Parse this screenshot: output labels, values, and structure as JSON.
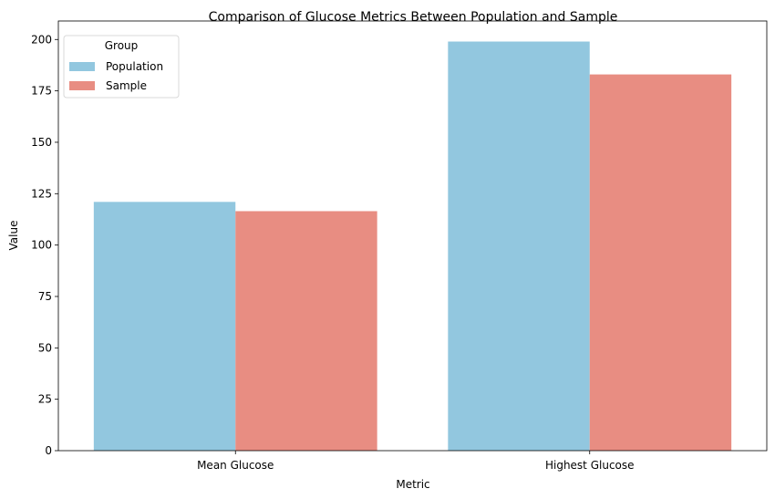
{
  "chart_data": {
    "type": "bar",
    "title": "Comparison of Glucose Metrics Between Population and Sample",
    "xlabel": "Metric",
    "ylabel": "Value",
    "categories": [
      "Mean Glucose",
      "Highest Glucose"
    ],
    "series": [
      {
        "name": "Population",
        "values": [
          121,
          199
        ],
        "color": "#92c7df"
      },
      {
        "name": "Sample",
        "values": [
          116.5,
          183
        ],
        "color": "#e88d82"
      }
    ],
    "ylim": [
      0,
      209
    ],
    "yticks": [
      0,
      25,
      50,
      75,
      100,
      125,
      150,
      175,
      200
    ],
    "grid": false,
    "legend": {
      "title": "Group",
      "placement": "top-left"
    }
  }
}
